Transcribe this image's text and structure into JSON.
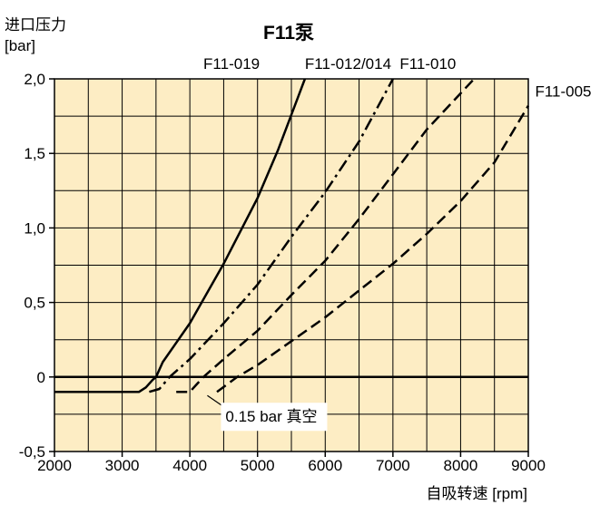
{
  "chart_data": {
    "type": "line",
    "title": "F11泵",
    "ylabel_line1": "进口压力",
    "ylabel_line2": "[bar]",
    "xlabel": "自吸转速 [rpm]",
    "xlim": [
      2000,
      9000
    ],
    "ylim": [
      -0.5,
      2.0
    ],
    "xticks": [
      2000,
      3000,
      4000,
      5000,
      6000,
      7000,
      8000,
      9000
    ],
    "xtick_labels": [
      "2000",
      "3000",
      "4000",
      "5000",
      "6000",
      "7000",
      "8000",
      "9000"
    ],
    "yticks": [
      -0.5,
      0,
      0.5,
      1.0,
      1.5,
      2.0
    ],
    "ytick_labels": [
      "-0,5",
      "0",
      "0,5",
      "1,0",
      "1,5",
      "2,0"
    ],
    "x_gridlines": [
      2000,
      2500,
      3000,
      3500,
      4000,
      4500,
      5000,
      5500,
      6000,
      6500,
      7000,
      7500,
      8000,
      8500,
      9000
    ],
    "y_gridlines": [
      -0.5,
      -0.25,
      0,
      0.25,
      0.5,
      0.75,
      1.0,
      1.25,
      1.5,
      1.75,
      2.0
    ],
    "zero_line": 0,
    "background_color": "#fdedc4",
    "series": [
      {
        "name": "F11-019",
        "style": "solid",
        "points": [
          [
            2000,
            -0.1
          ],
          [
            3250,
            -0.1
          ],
          [
            3350,
            -0.07
          ],
          [
            3450,
            -0.02
          ],
          [
            3500,
            0.0
          ],
          [
            3600,
            0.1
          ],
          [
            4000,
            0.36
          ],
          [
            4500,
            0.76
          ],
          [
            5000,
            1.2
          ],
          [
            5300,
            1.52
          ],
          [
            5600,
            1.88
          ],
          [
            5700,
            2.0
          ]
        ]
      },
      {
        "name": "F11-012/014",
        "style": "dashdot",
        "points": [
          [
            3400,
            -0.1
          ],
          [
            3550,
            -0.08
          ],
          [
            3700,
            0.0
          ],
          [
            4000,
            0.12
          ],
          [
            4500,
            0.36
          ],
          [
            5000,
            0.62
          ],
          [
            5500,
            0.94
          ],
          [
            6000,
            1.24
          ],
          [
            6500,
            1.58
          ],
          [
            7000,
            2.0
          ]
        ]
      },
      {
        "name": "F11-010",
        "style": "dashed",
        "points": [
          [
            3800,
            -0.1
          ],
          [
            4000,
            -0.1
          ],
          [
            4100,
            -0.05
          ],
          [
            4200,
            0.0
          ],
          [
            4500,
            0.12
          ],
          [
            5000,
            0.31
          ],
          [
            5500,
            0.55
          ],
          [
            6000,
            0.78
          ],
          [
            6500,
            1.06
          ],
          [
            7000,
            1.36
          ],
          [
            7500,
            1.66
          ],
          [
            8200,
            2.0
          ]
        ]
      },
      {
        "name": "F11-005",
        "style": "dashed",
        "points": [
          [
            4400,
            -0.1
          ],
          [
            4550,
            -0.05
          ],
          [
            4700,
            0.0
          ],
          [
            5000,
            0.08
          ],
          [
            5500,
            0.24
          ],
          [
            6000,
            0.4
          ],
          [
            6500,
            0.58
          ],
          [
            7000,
            0.76
          ],
          [
            7500,
            0.96
          ],
          [
            8000,
            1.18
          ],
          [
            8500,
            1.44
          ],
          [
            9000,
            1.82
          ]
        ]
      }
    ],
    "series_label_positions_x": [
      4200,
      5700,
      7100,
      9100
    ],
    "annotation": {
      "text": "0.15 bar 真空",
      "target": [
        4500,
        -0.1
      ]
    }
  }
}
